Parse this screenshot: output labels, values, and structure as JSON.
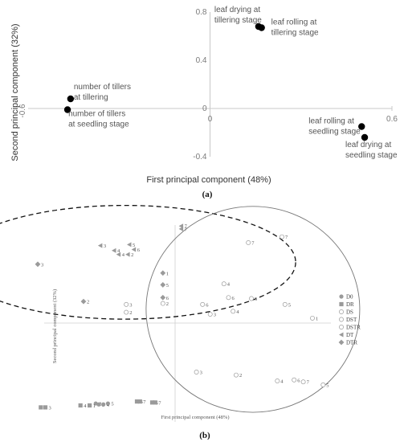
{
  "chart_data": [
    {
      "type": "scatter",
      "panel_label": "(a)",
      "xlabel": "First principal component (48%)",
      "ylabel": "Second principal component (32%)",
      "xlim": [
        -0.6,
        0.6
      ],
      "ylim": [
        -0.4,
        0.8
      ],
      "x_ticks": [
        "0",
        "0.6"
      ],
      "y_ticks": [
        "0.8",
        "0.4",
        "0",
        "-0.4"
      ],
      "left_end_tick": "-0.6",
      "points": [
        {
          "x": 0.16,
          "y": 0.68,
          "label_lines": [
            "leaf drying at",
            "tillering stage"
          ]
        },
        {
          "x": 0.17,
          "y": 0.67,
          "label_lines": [
            "leaf rolling at",
            "tillering stage"
          ]
        },
        {
          "x": -0.46,
          "y": 0.08,
          "label_lines": [
            "number of tillers",
            "at tillering"
          ]
        },
        {
          "x": -0.47,
          "y": -0.01,
          "label_lines": [
            "number of tillers",
            "at seedling stage"
          ]
        },
        {
          "x": 0.5,
          "y": -0.15,
          "label_lines": [
            "leaf rolling at",
            "seedling stage"
          ]
        },
        {
          "x": 0.51,
          "y": -0.24,
          "label_lines": [
            "leaf drying at",
            "seedling stage"
          ]
        }
      ]
    },
    {
      "type": "scatter",
      "panel_label": "(b)",
      "xlabel": "First principal component (48%)",
      "ylabel": "Second principal component (32%)",
      "xlim": [
        -1,
        1
      ],
      "ylim": [
        -1,
        1
      ],
      "legend": [
        {
          "name": "D0",
          "marker": "circle",
          "color": "#9a9a9a"
        },
        {
          "name": "DR",
          "marker": "square",
          "color": "#9a9a9a"
        },
        {
          "name": "DS",
          "marker": "circle-open",
          "color": "#9a9a9a"
        },
        {
          "name": "DST",
          "marker": "circle-open",
          "color": "#9a9a9a"
        },
        {
          "name": "DSTR",
          "marker": "circle-open",
          "color": "#9a9a9a"
        },
        {
          "name": "DT",
          "marker": "triangle",
          "color": "#9a9a9a"
        },
        {
          "name": "DTR",
          "marker": "diamond",
          "color": "#9a9a9a"
        }
      ],
      "series": [
        {
          "name": "D0",
          "points": [
            {
              "x": -0.52,
              "y": -0.82,
              "label": "2"
            },
            {
              "x": -0.5,
              "y": -0.83,
              "label": "3"
            },
            {
              "x": -0.47,
              "y": -0.83,
              "label": "4"
            },
            {
              "x": -0.44,
              "y": -0.82,
              "label": "5"
            }
          ]
        },
        {
          "name": "DR",
          "points": [
            {
              "x": -0.88,
              "y": -0.86,
              "label": "5"
            },
            {
              "x": -0.85,
              "y": -0.86,
              "label": "3"
            },
            {
              "x": -0.62,
              "y": -0.84,
              "label": "4"
            },
            {
              "x": -0.56,
              "y": -0.84,
              "label": "1"
            },
            {
              "x": -0.25,
              "y": -0.8,
              "label": "6"
            },
            {
              "x": -0.23,
              "y": -0.8,
              "label": "7"
            },
            {
              "x": -0.15,
              "y": -0.81,
              "label": "5"
            },
            {
              "x": -0.13,
              "y": -0.81,
              "label": "7"
            }
          ]
        },
        {
          "name": "DS",
          "points": [
            {
              "x": 0.7,
              "y": 0.88,
              "label": "7"
            },
            {
              "x": 0.9,
              "y": 0.05,
              "label": "1"
            },
            {
              "x": 0.72,
              "y": 0.19,
              "label": "5"
            },
            {
              "x": 0.5,
              "y": 0.25,
              "label": "5"
            }
          ]
        },
        {
          "name": "DST",
          "points": [
            {
              "x": 0.48,
              "y": 0.82,
              "label": "7"
            },
            {
              "x": 0.32,
              "y": 0.4,
              "label": "4"
            },
            {
              "x": 0.35,
              "y": 0.26,
              "label": "6"
            },
            {
              "x": 0.18,
              "y": 0.19,
              "label": "6"
            },
            {
              "x": 0.38,
              "y": 0.12,
              "label": "4"
            },
            {
              "x": 0.23,
              "y": 0.09,
              "label": "3"
            },
            {
              "x": -0.32,
              "y": 0.19,
              "label": "3"
            },
            {
              "x": -0.08,
              "y": 0.2,
              "label": "2"
            },
            {
              "x": -0.32,
              "y": 0.11,
              "label": "2"
            }
          ]
        },
        {
          "name": "DSTR",
          "points": [
            {
              "x": 0.14,
              "y": -0.5,
              "label": "3"
            },
            {
              "x": 0.4,
              "y": -0.53,
              "label": "2"
            },
            {
              "x": 0.67,
              "y": -0.59,
              "label": "4"
            },
            {
              "x": 0.78,
              "y": -0.58,
              "label": "6"
            },
            {
              "x": 0.84,
              "y": -0.6,
              "label": "7"
            },
            {
              "x": 0.97,
              "y": -0.63,
              "label": "5"
            }
          ]
        },
        {
          "name": "DT",
          "points": [
            {
              "x": -0.49,
              "y": 0.79,
              "label": "3"
            },
            {
              "x": -0.3,
              "y": 0.8,
              "label": "5"
            },
            {
              "x": -0.4,
              "y": 0.74,
              "label": "4"
            },
            {
              "x": -0.27,
              "y": 0.75,
              "label": "6"
            },
            {
              "x": -0.37,
              "y": 0.7,
              "label": "4"
            },
            {
              "x": -0.31,
              "y": 0.7,
              "label": "2"
            },
            {
              "x": 0.04,
              "y": 0.99,
              "label": "7"
            },
            {
              "x": 0.04,
              "y": 0.96,
              "label": "7"
            }
          ]
        },
        {
          "name": "DTR",
          "points": [
            {
              "x": -0.9,
              "y": 0.6,
              "label": "3"
            },
            {
              "x": -0.08,
              "y": 0.51,
              "label": "1"
            },
            {
              "x": -0.08,
              "y": 0.39,
              "label": "5"
            },
            {
              "x": -0.08,
              "y": 0.26,
              "label": "6"
            },
            {
              "x": -0.6,
              "y": 0.22,
              "label": "2"
            }
          ]
        }
      ],
      "ellipses": [
        {
          "style": "dashed",
          "cx": -0.33,
          "cy": 0.62,
          "rx": 1.12,
          "ry": 0.58
        },
        {
          "style": "solid",
          "cx": 0.51,
          "cy": 0.14,
          "rx": 0.7,
          "ry": 1.05
        }
      ]
    }
  ]
}
